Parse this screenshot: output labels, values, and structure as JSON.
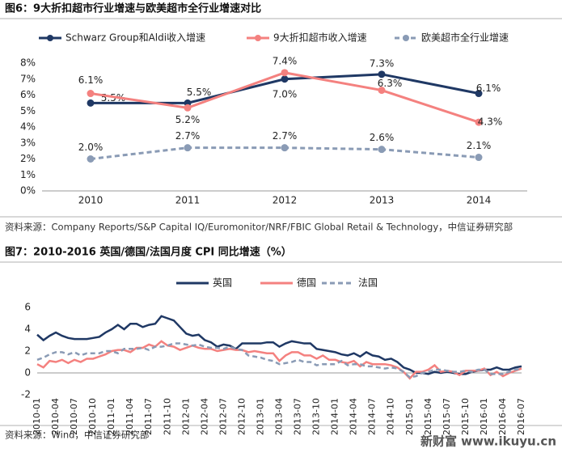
{
  "figures": [
    {
      "title": "图6：9大折扣超市行业增速与欧美超市全行业增速对比",
      "source": "资料来源：Company Reports/S&P Capital IQ/Euromonitor/NRF/FBIC Global Retail & Technology，中信证券研究部"
    },
    {
      "title": "图7：2010-2016 英国/德国/法国月度 CPI 同比增速（%）",
      "source": "资料来源：Wind，中信证券研究部"
    }
  ],
  "watermark": "新财富 www.ikuyu.cn",
  "chart_data": [
    {
      "type": "line",
      "categories": [
        "2010",
        "2011",
        "2012",
        "2013",
        "2014"
      ],
      "ylim": [
        0,
        8
      ],
      "yticks": [
        {
          "value": 0,
          "label": "0%"
        },
        {
          "value": 1,
          "label": "1%"
        },
        {
          "value": 2,
          "label": "2%"
        },
        {
          "value": 3,
          "label": "3%"
        },
        {
          "value": 4,
          "label": "4%"
        },
        {
          "value": 5,
          "label": "5%"
        },
        {
          "value": 6,
          "label": "6%"
        },
        {
          "value": 7,
          "label": "7%"
        },
        {
          "value": 8,
          "label": "8%"
        }
      ],
      "grid": false,
      "markers": true,
      "series": [
        {
          "name": "Schwarz Group和Aldi收入增速",
          "color": "#1f3864",
          "dashed": false,
          "values": [
            5.5,
            5.5,
            7.0,
            7.3,
            6.1
          ],
          "value_labels": [
            "5.5%",
            "5.5%",
            "7.0%",
            "7.3%",
            "6.1%"
          ]
        },
        {
          "name": "9大折扣超市收入增速",
          "color": "#f4817f",
          "dashed": false,
          "values": [
            6.1,
            5.2,
            7.4,
            6.3,
            4.3
          ],
          "value_labels": [
            "6.1%",
            "5.2%",
            "7.4%",
            "6.3%",
            "4.3%"
          ]
        },
        {
          "name": "欧美超市全行业增速",
          "color": "#8a9bb5",
          "dashed": true,
          "values": [
            2.0,
            2.7,
            2.7,
            2.6,
            2.1
          ],
          "value_labels": [
            "2.0%",
            "2.7%",
            "2.7%",
            "2.6%",
            "2.1%"
          ]
        }
      ]
    },
    {
      "type": "line",
      "categories": [
        "2010-01",
        null,
        null,
        "2010-04",
        null,
        null,
        "2010-07",
        null,
        null,
        "2010-10",
        null,
        null,
        "2011-01",
        null,
        null,
        "2011-04",
        null,
        null,
        "2011-07",
        null,
        null,
        "2011-10",
        null,
        null,
        "2012-01",
        null,
        null,
        "2012-04",
        null,
        null,
        "2012-07",
        null,
        null,
        "2012-10",
        null,
        null,
        "2013-01",
        null,
        null,
        "2013-04",
        null,
        null,
        "2013-07",
        null,
        null,
        "2013-10",
        null,
        null,
        "2014-01",
        null,
        null,
        "2014-04",
        null,
        null,
        "2014-07",
        null,
        null,
        "2014-10",
        null,
        null,
        "2015-01",
        null,
        null,
        "2015-04",
        null,
        null,
        "2015-07",
        null,
        null,
        "2015-10",
        null,
        null,
        "2016-01",
        null,
        null,
        "2016-04",
        null,
        null,
        "2016-07"
      ],
      "ylim": [
        -2,
        6
      ],
      "yticks": [
        -2,
        0,
        2,
        4,
        6
      ],
      "grid": false,
      "markers": false,
      "series": [
        {
          "name": "英国",
          "color": "#1f3864",
          "dashed": false,
          "values": [
            3.5,
            3.0,
            3.4,
            3.7,
            3.4,
            3.2,
            3.1,
            3.1,
            3.1,
            3.2,
            3.3,
            3.7,
            4.0,
            4.4,
            4.0,
            4.5,
            4.5,
            4.2,
            4.4,
            4.5,
            5.2,
            5.0,
            4.8,
            4.2,
            3.6,
            3.4,
            3.5,
            3.0,
            2.8,
            2.4,
            2.6,
            2.5,
            2.2,
            2.7,
            2.7,
            2.7,
            2.7,
            2.8,
            2.8,
            2.4,
            2.7,
            2.9,
            2.8,
            2.7,
            2.7,
            2.2,
            2.1,
            2.0,
            1.9,
            1.7,
            1.6,
            1.8,
            1.5,
            1.9,
            1.6,
            1.5,
            1.2,
            1.3,
            1.0,
            0.5,
            0.3,
            0.0,
            0.0,
            -0.1,
            0.1,
            0.0,
            0.1,
            0.0,
            -0.1,
            -0.1,
            0.1,
            0.2,
            0.3,
            0.3,
            0.5,
            0.3,
            0.3,
            0.5,
            0.6
          ]
        },
        {
          "name": "德国",
          "color": "#f4817f",
          "dashed": false,
          "values": [
            0.8,
            0.5,
            1.1,
            1.0,
            1.2,
            0.9,
            1.2,
            1.0,
            1.3,
            1.3,
            1.5,
            1.7,
            2.0,
            2.1,
            2.1,
            1.9,
            2.3,
            2.3,
            2.6,
            2.4,
            2.9,
            2.5,
            2.4,
            2.1,
            2.3,
            2.5,
            2.3,
            2.2,
            2.2,
            2.0,
            2.1,
            2.2,
            2.1,
            2.1,
            1.9,
            2.0,
            1.9,
            1.8,
            1.8,
            1.1,
            1.6,
            1.9,
            1.9,
            1.6,
            1.6,
            1.3,
            1.6,
            1.2,
            1.2,
            1.0,
            0.9,
            1.1,
            0.6,
            1.0,
            0.8,
            0.8,
            0.8,
            0.7,
            0.5,
            0.1,
            -0.5,
            0.1,
            0.1,
            0.3,
            0.7,
            0.1,
            0.2,
            0.1,
            -0.2,
            0.2,
            0.2,
            0.2,
            0.4,
            -0.2,
            0.1,
            -0.3,
            0.0,
            0.2,
            0.4
          ]
        },
        {
          "name": "法国",
          "color": "#8a9bb5",
          "dashed": true,
          "values": [
            1.2,
            1.4,
            1.7,
            1.9,
            1.9,
            1.7,
            1.9,
            1.6,
            1.8,
            1.8,
            1.8,
            2.0,
            2.0,
            1.8,
            2.2,
            2.2,
            2.2,
            2.3,
            2.1,
            2.4,
            2.4,
            2.5,
            2.7,
            2.7,
            2.6,
            2.5,
            2.6,
            2.4,
            2.3,
            2.3,
            2.2,
            2.4,
            2.2,
            2.1,
            1.6,
            1.5,
            1.4,
            1.2,
            1.1,
            0.8,
            0.9,
            1.0,
            1.2,
            1.0,
            1.0,
            0.7,
            0.8,
            0.8,
            0.8,
            1.1,
            0.7,
            0.8,
            0.8,
            0.6,
            0.6,
            0.5,
            0.4,
            0.5,
            0.4,
            0.1,
            -0.4,
            -0.3,
            0.0,
            0.1,
            0.3,
            0.3,
            0.2,
            0.1,
            0.1,
            0.2,
            0.1,
            0.3,
            0.3,
            -0.1,
            -0.1,
            -0.1,
            0.1,
            0.3,
            0.4
          ]
        }
      ]
    }
  ]
}
